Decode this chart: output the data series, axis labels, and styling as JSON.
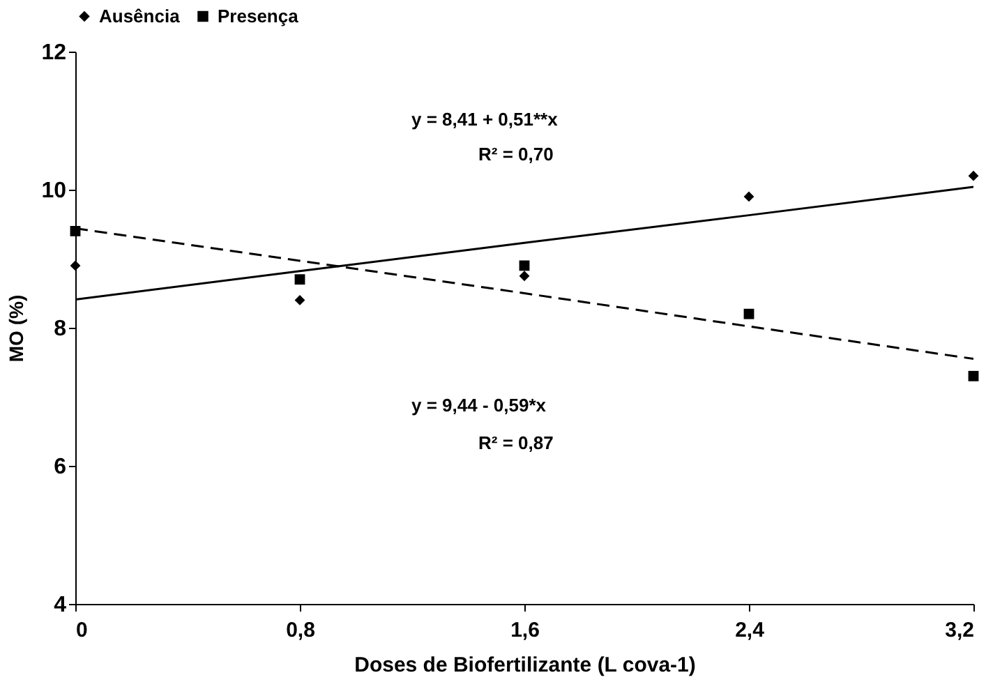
{
  "chart_data": {
    "type": "scatter",
    "xlabel": "Doses de Biofertilizante (L cova-1)",
    "ylabel": "MO (%)",
    "xlim": [
      0,
      3.2
    ],
    "ylim": [
      4,
      12
    ],
    "xticks": [
      0,
      {
        "value": 0.8,
        "label": "0,8"
      },
      {
        "value": 1.6,
        "label": "1,6"
      },
      {
        "value": 2.4,
        "label": "2,4"
      },
      {
        "value": 3.2,
        "label": "3,2"
      }
    ],
    "yticks": [
      4,
      6,
      8,
      10,
      12
    ],
    "x": [
      0,
      0.8,
      1.6,
      2.4,
      3.2
    ],
    "series": [
      {
        "name": "Ausência",
        "marker": "diamond",
        "color": "#000000",
        "values": [
          8.9,
          8.4,
          8.75,
          9.9,
          10.2
        ]
      },
      {
        "name": "Presença",
        "marker": "square",
        "color": "#000000",
        "values": [
          9.4,
          8.7,
          8.9,
          8.2,
          7.3
        ]
      },
      {
        "type": "line",
        "line_style": "solid",
        "color": "#000000",
        "values": [
          8.41,
          8.82,
          9.23,
          9.63,
          10.04
        ]
      },
      {
        "type": "line",
        "line_style": "dashed",
        "color": "#000000",
        "values": [
          9.44,
          8.97,
          8.5,
          8.02,
          7.55
        ]
      }
    ],
    "annotations": [
      "y =  8,41 + 0,51**x",
      "R² = 0,70",
      "y =  9,44 - 0,59*x",
      "R² = 0,87"
    ],
    "legend": "top",
    "grid": false
  }
}
